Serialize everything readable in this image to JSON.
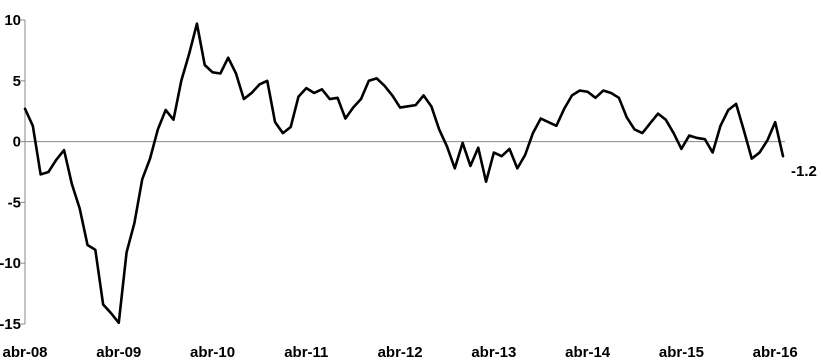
{
  "chart_data": {
    "type": "line",
    "title": "",
    "xlabel": "",
    "ylabel": "",
    "ylim": [
      -15,
      10
    ],
    "yticks": [
      10,
      5,
      0,
      -5,
      -10,
      -15
    ],
    "ytick_labels": [
      "10",
      "5",
      "0",
      "-5",
      "-10",
      "-15"
    ],
    "xtick_labels": [
      "abr-08",
      "abr-09",
      "abr-10",
      "abr-11",
      "abr-12",
      "abr-13",
      "abr-14",
      "abr-15",
      "abr-16"
    ],
    "x_start": "abr-08",
    "x_end": "abr-16",
    "frequency": "monthly",
    "grid": false,
    "series": [
      {
        "color": "#000000",
        "values": [
          2.7,
          1.3,
          -2.7,
          -2.5,
          -1.5,
          -0.7,
          -3.5,
          -5.5,
          -8.5,
          -8.9,
          -13.4,
          -14.1,
          -14.9,
          -9.1,
          -6.7,
          -3.1,
          -1.4,
          1.0,
          2.6,
          1.8,
          5.0,
          7.2,
          9.7,
          6.3,
          5.7,
          5.6,
          6.9,
          5.6,
          3.5,
          4.0,
          4.7,
          5.0,
          1.6,
          0.7,
          1.2,
          3.7,
          4.4,
          4.0,
          4.3,
          3.5,
          3.6,
          1.9,
          2.8,
          3.5,
          5.0,
          5.2,
          4.6,
          3.8,
          2.8,
          2.9,
          3.0,
          3.8,
          2.9,
          1.0,
          -0.4,
          -2.2,
          -0.1,
          -2.0,
          -0.5,
          -3.3,
          -0.9,
          -1.2,
          -0.6,
          -2.2,
          -1.1,
          0.7,
          1.9,
          1.6,
          1.3,
          2.7,
          3.8,
          4.2,
          4.1,
          3.6,
          4.2,
          4.0,
          3.6,
          2.0,
          1.0,
          0.7,
          1.5,
          2.3,
          1.8,
          0.7,
          -0.6,
          0.5,
          0.3,
          0.2,
          -0.9,
          1.3,
          2.6,
          3.1,
          0.9,
          -1.4,
          -0.9,
          0.1,
          1.6,
          -1.2
        ]
      }
    ],
    "end_label": "-1.2"
  }
}
